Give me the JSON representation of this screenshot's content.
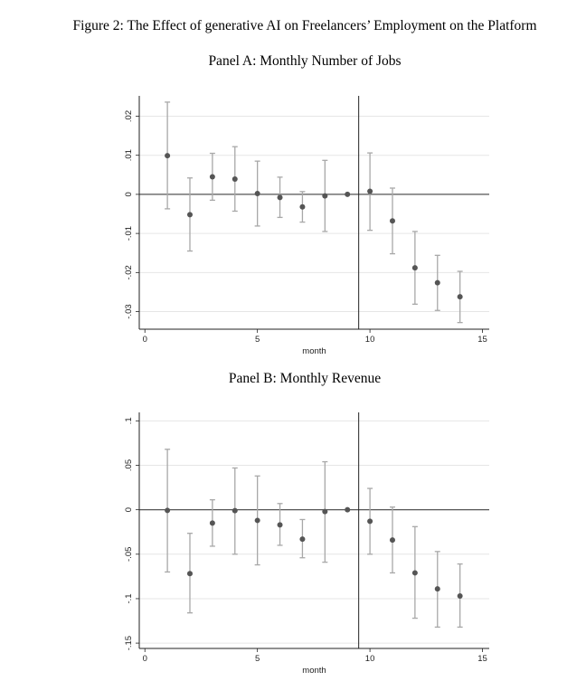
{
  "figure_title": "Figure 2: The Effect of generative AI on Freelancers’ Employment on the Platform",
  "chart_data": [
    {
      "type": "scatter",
      "title": "Panel A: Monthly Number of Jobs",
      "xlabel": "month",
      "ylabel": "",
      "xlim": [
        -0.25,
        15.3
      ],
      "ylim": [
        -0.0345,
        0.0252
      ],
      "xticks": [
        0,
        5,
        10,
        15
      ],
      "xtick_labels": [
        "0",
        "5",
        "10",
        "15"
      ],
      "yticks": [
        -0.03,
        -0.02,
        -0.01,
        0,
        0.01,
        0.02
      ],
      "ytick_labels": [
        "-.03",
        "-.02",
        "-.01",
        "0",
        ".01",
        ".02"
      ],
      "grid": true,
      "reference_line_x": 9.5,
      "reference_line_y": 0,
      "x": [
        1,
        2,
        3,
        4,
        5,
        6,
        7,
        8,
        9,
        10,
        11,
        12,
        13,
        14
      ],
      "y": [
        0.0099,
        -0.0052,
        0.0045,
        0.0039,
        0.0002,
        -0.0008,
        -0.0032,
        -0.0004,
        0,
        0.0008,
        -0.0068,
        -0.0188,
        -0.0226,
        -0.0262
      ],
      "ci_upper": [
        0.0236,
        0.0042,
        0.0105,
        0.0122,
        0.0085,
        0.0044,
        0.0007,
        0.0087,
        null,
        0.0106,
        0.0016,
        -0.0095,
        -0.0156,
        -0.0197
      ],
      "ci_lower": [
        -0.0037,
        -0.0145,
        -0.0015,
        -0.0043,
        -0.0081,
        -0.0059,
        -0.0071,
        -0.0095,
        null,
        -0.0092,
        -0.0152,
        -0.0281,
        -0.0297,
        -0.0328
      ]
    },
    {
      "type": "scatter",
      "title": "Panel B: Monthly Revenue",
      "xlabel": "month",
      "ylabel": "",
      "xlim": [
        -0.25,
        15.3
      ],
      "ylim": [
        -0.156,
        0.1095
      ],
      "xticks": [
        0,
        5,
        10,
        15
      ],
      "xtick_labels": [
        "0",
        "5",
        "10",
        "15"
      ],
      "yticks": [
        -0.15,
        -0.1,
        -0.05,
        0,
        0.05,
        0.1
      ],
      "ytick_labels": [
        "-.15",
        "-.1",
        "-.05",
        "0",
        ".05",
        ".1"
      ],
      "grid": true,
      "reference_line_x": 9.5,
      "reference_line_y": 0,
      "x": [
        1,
        2,
        3,
        4,
        5,
        6,
        7,
        8,
        9,
        10,
        11,
        12,
        13,
        14
      ],
      "y": [
        -0.0007,
        -0.0718,
        -0.015,
        -0.001,
        -0.012,
        -0.017,
        -0.033,
        -0.002,
        0,
        -0.013,
        -0.034,
        -0.071,
        -0.089,
        -0.097
      ],
      "ci_upper": [
        0.068,
        -0.0265,
        0.0112,
        0.047,
        0.038,
        0.007,
        -0.011,
        0.054,
        null,
        0.024,
        0.003,
        -0.019,
        -0.047,
        -0.061
      ],
      "ci_lower": [
        -0.07,
        -0.116,
        -0.041,
        -0.05,
        -0.062,
        -0.04,
        -0.054,
        -0.059,
        null,
        -0.05,
        -0.071,
        -0.122,
        -0.132,
        -0.132
      ]
    }
  ],
  "colors": {
    "point": "#555555",
    "ci": "#a8a8a8",
    "grid": "#e6e6e6",
    "axis": "#222222"
  }
}
